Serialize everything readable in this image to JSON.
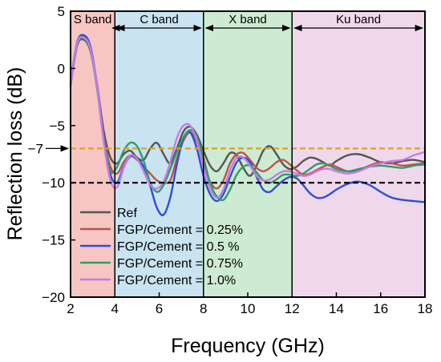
{
  "chart_data": {
    "type": "line",
    "title": "",
    "xlabel": "Frequency (GHz)",
    "ylabel": "Reflection loss (dB)",
    "xlim": [
      2,
      18
    ],
    "ylim": [
      -20,
      5
    ],
    "x_ticks": [
      2,
      4,
      6,
      8,
      10,
      12,
      14,
      16,
      18
    ],
    "y_ticks": [
      5,
      0,
      -5,
      -10,
      -15,
      -20
    ],
    "y_extra_tick": "-7",
    "bands": [
      {
        "label": "S band",
        "from": 2,
        "to": 4,
        "color": "#f7c6c3"
      },
      {
        "label": "C band",
        "from": 4,
        "to": 8,
        "color": "#c9e3f0"
      },
      {
        "label": "X band",
        "from": 8,
        "to": 12,
        "color": "#cdebd2"
      },
      {
        "label": "Ku band",
        "from": 12,
        "to": 18,
        "color": "#efd8ec"
      }
    ],
    "reference_lines": [
      {
        "y": -7,
        "color": "#e0a020"
      },
      {
        "y": -10,
        "color": "#000000"
      }
    ],
    "legend_position": "lower-left",
    "grid": false,
    "series": [
      {
        "name": "Ref",
        "color": "#555555",
        "x": [
          2,
          2.3,
          2.6,
          2.9,
          3.2,
          3.5,
          3.8,
          4.1,
          4.4,
          4.7,
          5,
          5.3,
          5.6,
          5.9,
          6.2,
          6.5,
          6.8,
          7.1,
          7.4,
          7.7,
          8,
          8.3,
          8.6,
          8.9,
          9.2,
          9.5,
          9.8,
          10.1,
          10.4,
          10.7,
          11,
          11.3,
          11.6,
          11.9,
          12.2,
          12.5,
          12.8,
          13.1,
          13.4,
          13.7,
          14,
          14.5,
          15,
          15.5,
          16,
          16.5,
          17,
          17.5,
          18
        ],
        "y": [
          -1.5,
          2,
          2.5,
          1.5,
          -1.5,
          -5.5,
          -7.8,
          -8.3,
          -7.5,
          -7.2,
          -7.8,
          -8,
          -7,
          -6.5,
          -7.5,
          -8.3,
          -7,
          -5.5,
          -5.1,
          -5.8,
          -7.2,
          -8.5,
          -9,
          -8.3,
          -7.4,
          -7.6,
          -8.7,
          -9.4,
          -8.5,
          -7.2,
          -6.8,
          -7.5,
          -8.4,
          -8.8,
          -8.6,
          -8.1,
          -7.8,
          -7.9,
          -8.2,
          -8.5,
          -8.1,
          -7.6,
          -7.5,
          -7.8,
          -8.2,
          -8.3,
          -8.1,
          -8.0,
          -8.2
        ]
      },
      {
        "name": "FGP/Cement = 0.25%",
        "color": "#c0504d",
        "x": [
          2,
          2.3,
          2.6,
          2.9,
          3.2,
          3.5,
          3.8,
          4.1,
          4.4,
          4.7,
          5,
          5.3,
          5.6,
          5.9,
          6.2,
          6.5,
          6.8,
          7.1,
          7.4,
          7.7,
          8,
          8.3,
          8.6,
          8.9,
          9.2,
          9.5,
          9.8,
          10.1,
          10.4,
          10.7,
          11,
          11.3,
          11.6,
          11.9,
          12.2,
          12.5,
          12.8,
          13.1,
          13.4,
          13.7,
          14,
          14.5,
          15,
          15.5,
          16,
          16.5,
          17,
          17.5,
          18
        ],
        "y": [
          -1.5,
          2.2,
          2.8,
          1.8,
          -1.5,
          -6,
          -8.6,
          -9.2,
          -8.2,
          -7.6,
          -8,
          -8.6,
          -9.2,
          -9.8,
          -10,
          -9.8,
          -7.9,
          -6.3,
          -5.6,
          -6.4,
          -8.2,
          -9.9,
          -10.5,
          -9.8,
          -8.3,
          -7.5,
          -7.4,
          -8,
          -8.7,
          -9,
          -8.7,
          -8.2,
          -8,
          -8.4,
          -8.9,
          -9.3,
          -9.2,
          -8.9,
          -8.6,
          -8.4,
          -8.6,
          -9.0,
          -8.9,
          -8.5,
          -8.2,
          -8.3,
          -8.5,
          -8.4,
          -8.3
        ]
      },
      {
        "name": "FGP/Cement = 0.5 %",
        "color": "#2f4fd8",
        "x": [
          2,
          2.3,
          2.6,
          2.9,
          3.2,
          3.5,
          3.8,
          4.1,
          4.4,
          4.7,
          5,
          5.3,
          5.6,
          5.9,
          6.2,
          6.5,
          6.8,
          7.1,
          7.4,
          7.7,
          8,
          8.3,
          8.6,
          8.9,
          9.2,
          9.5,
          9.8,
          10.1,
          10.4,
          10.7,
          11,
          11.3,
          11.6,
          11.9,
          12.2,
          12.5,
          12.8,
          13.1,
          13.4,
          13.7,
          14,
          14.5,
          15,
          15.5,
          16,
          16.5,
          17,
          17.5,
          18
        ],
        "y": [
          -1.2,
          2.3,
          2.9,
          1.9,
          -1.5,
          -6.2,
          -9.3,
          -10,
          -8.6,
          -7.7,
          -7.9,
          -8.6,
          -10.3,
          -12.2,
          -12.8,
          -11.3,
          -8.4,
          -6.1,
          -5.6,
          -7,
          -9.4,
          -11,
          -11.6,
          -11,
          -9.5,
          -8.2,
          -7.8,
          -8.2,
          -9.5,
          -10.6,
          -10.8,
          -10.3,
          -9.8,
          -9.5,
          -9.6,
          -10.2,
          -10.9,
          -11.3,
          -11.3,
          -11.0,
          -10.6,
          -10.1,
          -9.9,
          -10.2,
          -10.8,
          -11.3,
          -11.5,
          -11.6,
          -11.7
        ]
      },
      {
        "name": "FGP/Cement = 0.75%",
        "color": "#2e9e63",
        "x": [
          2,
          2.3,
          2.6,
          2.9,
          3.2,
          3.5,
          3.8,
          4.1,
          4.4,
          4.7,
          5,
          5.3,
          5.6,
          5.9,
          6.2,
          6.5,
          6.8,
          7.1,
          7.4,
          7.7,
          8,
          8.3,
          8.6,
          8.9,
          9.2,
          9.5,
          9.8,
          10.1,
          10.4,
          10.7,
          11,
          11.3,
          11.6,
          11.9,
          12.2,
          12.5,
          12.8,
          13.1,
          13.4,
          13.7,
          14,
          14.5,
          15,
          15.5,
          16,
          16.5,
          17,
          17.5,
          18
        ],
        "y": [
          -1.3,
          2.1,
          2.6,
          1.6,
          -1.8,
          -6.3,
          -9,
          -8.6,
          -7.2,
          -6.5,
          -6.8,
          -8.1,
          -10,
          -10.8,
          -10.2,
          -8.8,
          -7.3,
          -6,
          -5.4,
          -6,
          -7.8,
          -10,
          -11.2,
          -11.5,
          -10.6,
          -9.3,
          -8.6,
          -8.5,
          -9.1,
          -9.8,
          -10,
          -9.7,
          -9.3,
          -9.3,
          -9.4,
          -9.2,
          -8.8,
          -8.4,
          -8.3,
          -8.5,
          -8.8,
          -9.0,
          -8.8,
          -8.6,
          -8.5,
          -8.6,
          -8.7,
          -8.5,
          -8.4
        ]
      },
      {
        "name": "FGP/Cement = 1.0%",
        "color": "#c77ae8",
        "x": [
          2,
          2.3,
          2.6,
          2.9,
          3.2,
          3.5,
          3.8,
          4.1,
          4.4,
          4.7,
          5,
          5.3,
          5.6,
          5.9,
          6.2,
          6.5,
          6.8,
          7.1,
          7.4,
          7.7,
          8,
          8.3,
          8.6,
          8.9,
          9.2,
          9.5,
          9.8,
          10.1,
          10.4,
          10.7,
          11,
          11.3,
          11.6,
          11.9,
          12.2,
          12.5,
          12.8,
          13.1,
          13.4,
          13.7,
          14,
          14.5,
          15,
          15.5,
          16,
          16.5,
          17,
          17.5,
          18
        ],
        "y": [
          -1.4,
          2.2,
          2.7,
          1.7,
          -1.6,
          -6.5,
          -9.8,
          -10.4,
          -8.7,
          -7.6,
          -7.9,
          -9,
          -10.2,
          -10.5,
          -9.9,
          -8.2,
          -6.1,
          -5,
          -5,
          -6.3,
          -8.6,
          -10.5,
          -11.3,
          -10.6,
          -8.9,
          -7.8,
          -7.8,
          -8.5,
          -9.4,
          -9.8,
          -9.7,
          -9.3,
          -9,
          -9,
          -9.2,
          -9.4,
          -9.3,
          -9.0,
          -8.8,
          -8.8,
          -9.0,
          -9.2,
          -9.0,
          -8.6,
          -8.3,
          -8.1,
          -8.0,
          -7.6,
          -7.3
        ]
      }
    ]
  }
}
